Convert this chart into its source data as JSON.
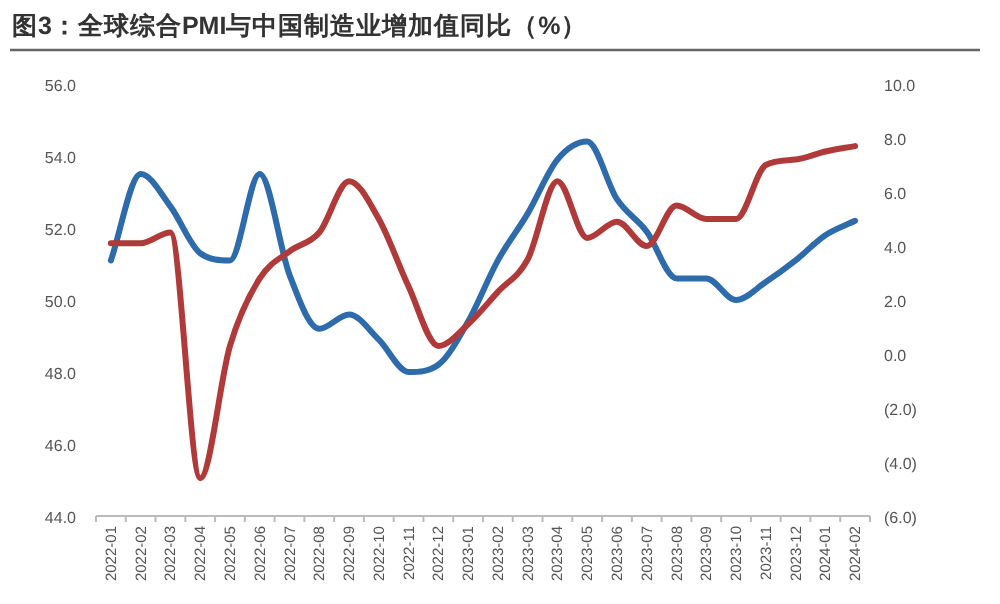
{
  "chart_data": {
    "type": "line",
    "title": "图3：全球综合PMI与中国制造业增加值同比（%）",
    "categories": [
      "2022-01",
      "2022-02",
      "2022-03",
      "2022-04",
      "2022-05",
      "2022-06",
      "2022-07",
      "2022-08",
      "2022-09",
      "2022-10",
      "2022-11",
      "2022-12",
      "2023-01",
      "2023-02",
      "2023-03",
      "2023-04",
      "2023-05",
      "2023-06",
      "2023-07",
      "2023-08",
      "2023-09",
      "2023-10",
      "2023-11",
      "2023-12",
      "2024-01",
      "2024-02"
    ],
    "series": [
      {
        "color": "#2e6bab",
        "values": [
          51.1,
          53.5,
          52.6,
          51.3,
          51.1,
          53.5,
          50.7,
          49.2,
          49.6,
          48.9,
          48.0,
          48.2,
          49.4,
          51.1,
          52.4,
          53.9,
          54.4,
          52.8,
          51.9,
          50.6,
          50.6,
          50.0,
          50.5,
          51.1,
          51.8,
          52.2
        ]
      },
      {
        "color": "#b03a3a",
        "axis": "y2",
        "values": [
          4.1,
          4.1,
          4.5,
          -4.6,
          0.3,
          2.8,
          3.8,
          4.5,
          6.4,
          5.0,
          2.5,
          0.3,
          1.1,
          2.3,
          3.5,
          6.4,
          4.3,
          4.9,
          4.0,
          5.5,
          5.0,
          5.0,
          7.0,
          7.2,
          7.5,
          7.7
        ]
      }
    ],
    "ylim": [
      44,
      56
    ],
    "yticks": [
      {
        "value": 44,
        "label": "44.0"
      },
      {
        "value": 46,
        "label": "46.0"
      },
      {
        "value": 48,
        "label": "48.0"
      },
      {
        "value": 50,
        "label": "50.0"
      },
      {
        "value": 52,
        "label": "52.0"
      },
      {
        "value": 54,
        "label": "54.0"
      },
      {
        "value": 56,
        "label": "56.0"
      }
    ],
    "y2lim": [
      -6,
      10
    ],
    "y2ticks": [
      {
        "value": -6,
        "label": "(6.0)"
      },
      {
        "value": -4,
        "label": "(4.0)"
      },
      {
        "value": -2,
        "label": "(2.0)"
      },
      {
        "value": 0,
        "label": "0.0"
      },
      {
        "value": 2,
        "label": "2.0"
      },
      {
        "value": 4,
        "label": "4.0"
      },
      {
        "value": 6,
        "label": "6.0"
      },
      {
        "value": 8,
        "label": "8.0"
      },
      {
        "value": 10,
        "label": "10.0"
      }
    ]
  }
}
